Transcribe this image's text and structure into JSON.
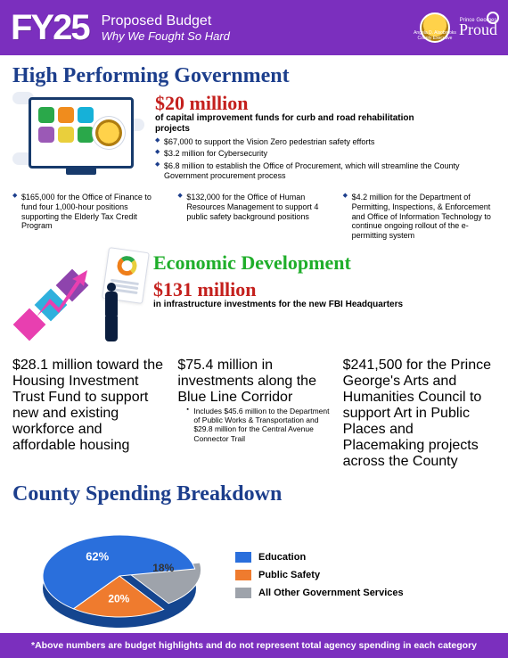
{
  "colors": {
    "purple": "#7b2fbe",
    "navy": "#1c3e8c",
    "red": "#c4201d",
    "green": "#1fae2a",
    "pie_education": "#2a6fdc",
    "pie_public_safety": "#ef7b2e",
    "pie_other": "#9ea3ab"
  },
  "header": {
    "fy": "FY25",
    "title": "Proposed Budget",
    "subtitle": "Why We Fought So Hard",
    "executive": "Angela D. Alsobrooks",
    "executive_role": "County Executive",
    "proud_top": "Prince Georges",
    "proud": "Proud"
  },
  "hpg": {
    "title": "High Performing Government",
    "amount": "$20 million",
    "amount_sub": "of capital improvement funds for curb and road rehabilitation projects",
    "bullets": [
      "$67,000 to support the Vision Zero pedestrian safety efforts",
      "$3.2 million for Cybersecurity",
      "$6.8 million to establish the Office of Procurement, which will streamline the County Government procurement process"
    ],
    "cols": [
      "$165,000 for the Office of Finance to fund four 1,000-hour positions supporting the Elderly Tax Credit Program",
      "$132,000 for the Office of Human Resources Management to support 4 public safety background positions",
      "$4.2 million for the Department of Permitting, Inspections, & Enforcement and Office of Information Technology to continue ongoing rollout of the e-permitting system"
    ]
  },
  "eco": {
    "title": "Economic Development",
    "amount": "$131 million",
    "amount_sub": "in infrastructure investments for the new FBI Headquarters",
    "cols": [
      {
        "lead": "$28.1 million toward the Housing Investment Trust Fund to support new and existing workforce and affordable housing",
        "sub": []
      },
      {
        "lead": "$75.4 million in investments along the Blue Line Corridor",
        "sub": [
          "Includes $45.6 million to the Department of Public Works & Transportation and $29.8 million for the Central Avenue Connector Trail"
        ]
      },
      {
        "lead": "$241,500 for the Prince George's Arts and Humanities Council to support Art in Public Places and Placemaking projects across the County",
        "sub": []
      }
    ]
  },
  "breakdown": {
    "title": "County Spending Breakdown",
    "slices": [
      {
        "label": "Education",
        "value": 62,
        "color": "#2a6fdc"
      },
      {
        "label": "Public Safety",
        "value": 20,
        "color": "#ef7b2e"
      },
      {
        "label": "All Other Government Services",
        "value": 18,
        "color": "#9ea3ab"
      }
    ]
  },
  "footer": "*Above numbers are budget highlights and do not represent total agency spending in each category"
}
